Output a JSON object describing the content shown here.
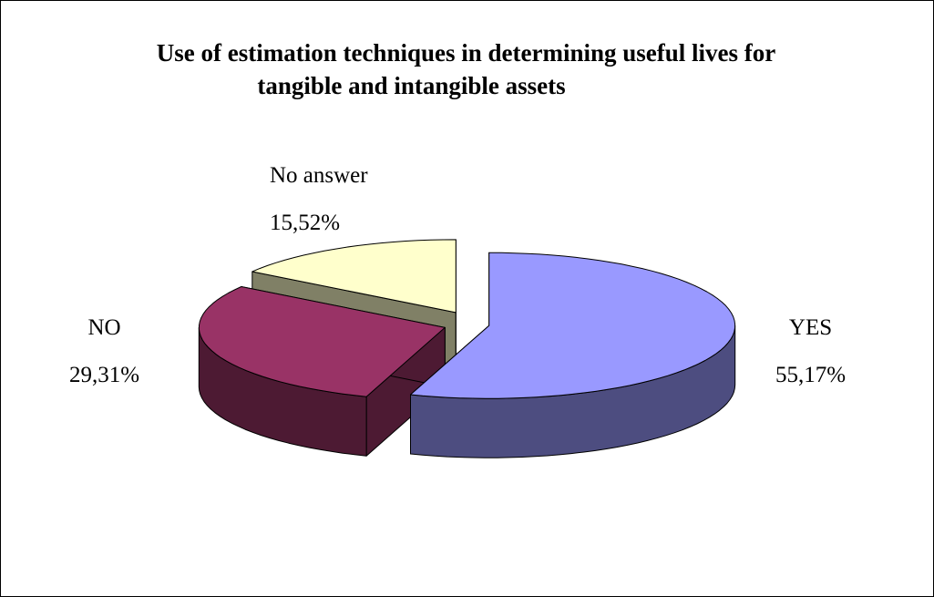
{
  "chart_data": {
    "type": "pie",
    "title_lines": [
      "Use of estimation techniques in determining useful lives for",
      "tangible and intangible assets"
    ],
    "slices": [
      {
        "label": "YES",
        "value": 55.17,
        "value_text": "55,17%",
        "top_color": "#9999ff",
        "side_color": "#4d4d80"
      },
      {
        "label": "NO",
        "value": 29.31,
        "value_text": "29,31%",
        "top_color": "#993366",
        "side_color": "#4d1a33"
      },
      {
        "label": "No answer",
        "value": 15.52,
        "value_text": "15,52%",
        "top_color": "#ffffcc",
        "side_color": "#808066"
      }
    ],
    "style": "3d-exploded"
  }
}
